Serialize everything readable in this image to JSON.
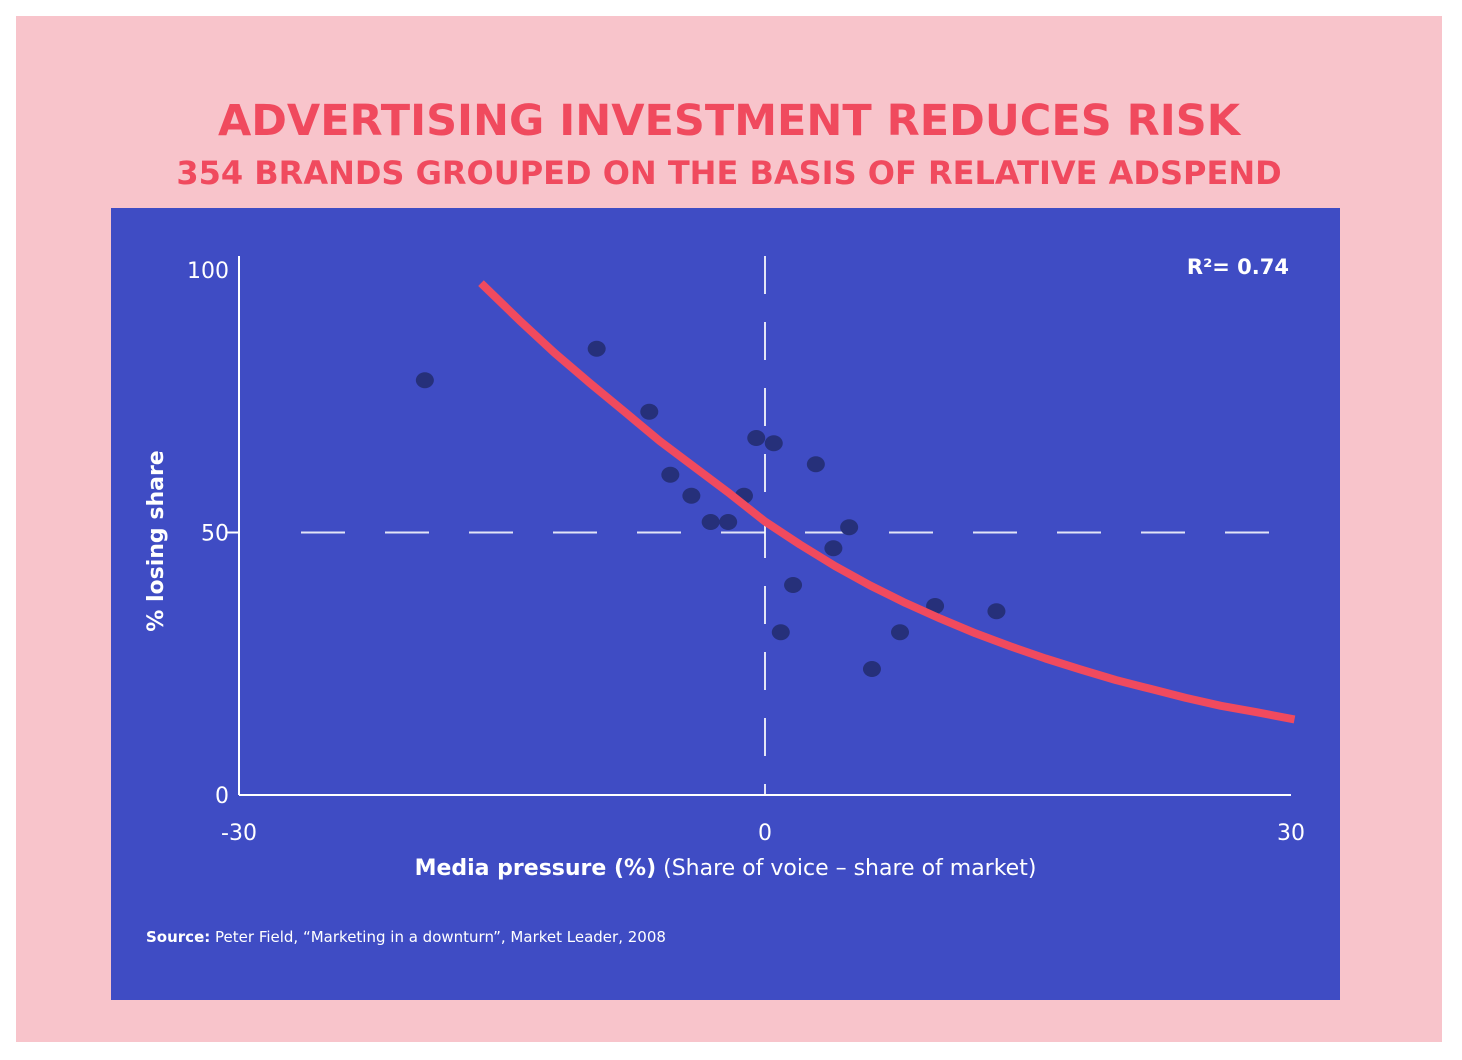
{
  "title": "ADVERTISING INVESTMENT REDUCES RISK",
  "subtitle": "354 BRANDS GROUPED ON THE BASIS OF RELATIVE ADSPEND",
  "colors": {
    "background": "#f8c4cb",
    "chart_background": "#3f4cc4",
    "title": "#f04a5e",
    "curve": "#f04a5e",
    "points": "#26307a",
    "text": "#ffffff"
  },
  "source": {
    "label": "Source:",
    "text": "Peter Field, “Marketing in a downturn”, Market Leader, 2008"
  },
  "chart_data": {
    "type": "scatter",
    "x": [
      -19.4,
      -9.6,
      -6.6,
      -5.4,
      -4.2,
      -3.1,
      -2.1,
      -1.2,
      -0.5,
      0.5,
      0.9,
      1.6,
      2.9,
      3.9,
      4.8,
      6.1,
      7.7,
      9.7,
      13.2
    ],
    "y": [
      79,
      85,
      73,
      61,
      57,
      52,
      52,
      57,
      68,
      67,
      31,
      40,
      63,
      47,
      51,
      24,
      31,
      36,
      35
    ],
    "fit": {
      "label": "R²= 0.74",
      "x": [
        -16.2,
        -14,
        -12,
        -10,
        -8,
        -6,
        -4,
        -2,
        0,
        2,
        4,
        6,
        8,
        10,
        12,
        14,
        16,
        18,
        20,
        22,
        24,
        26,
        28,
        30.2
      ],
      "y": [
        97.5,
        90.4,
        84.2,
        78.5,
        73.0,
        67.4,
        62.4,
        57.4,
        52.1,
        47.7,
        43.6,
        39.9,
        36.6,
        33.6,
        30.8,
        28.3,
        26.0,
        23.9,
        21.9,
        20.2,
        18.5,
        17.0,
        15.8,
        14.4
      ]
    },
    "xlabel_bold": "Media pressure (%)",
    "xlabel_rest": " (Share of voice – share of market)",
    "ylabel": "% losing share",
    "xlim": [
      -30,
      30
    ],
    "ylim": [
      0,
      100
    ],
    "x_ticks": [
      "-30",
      "0",
      "30"
    ],
    "y_ticks": [
      "0",
      "50",
      "100"
    ],
    "reference_lines": {
      "x": 0,
      "y": 50
    },
    "grid": false
  }
}
